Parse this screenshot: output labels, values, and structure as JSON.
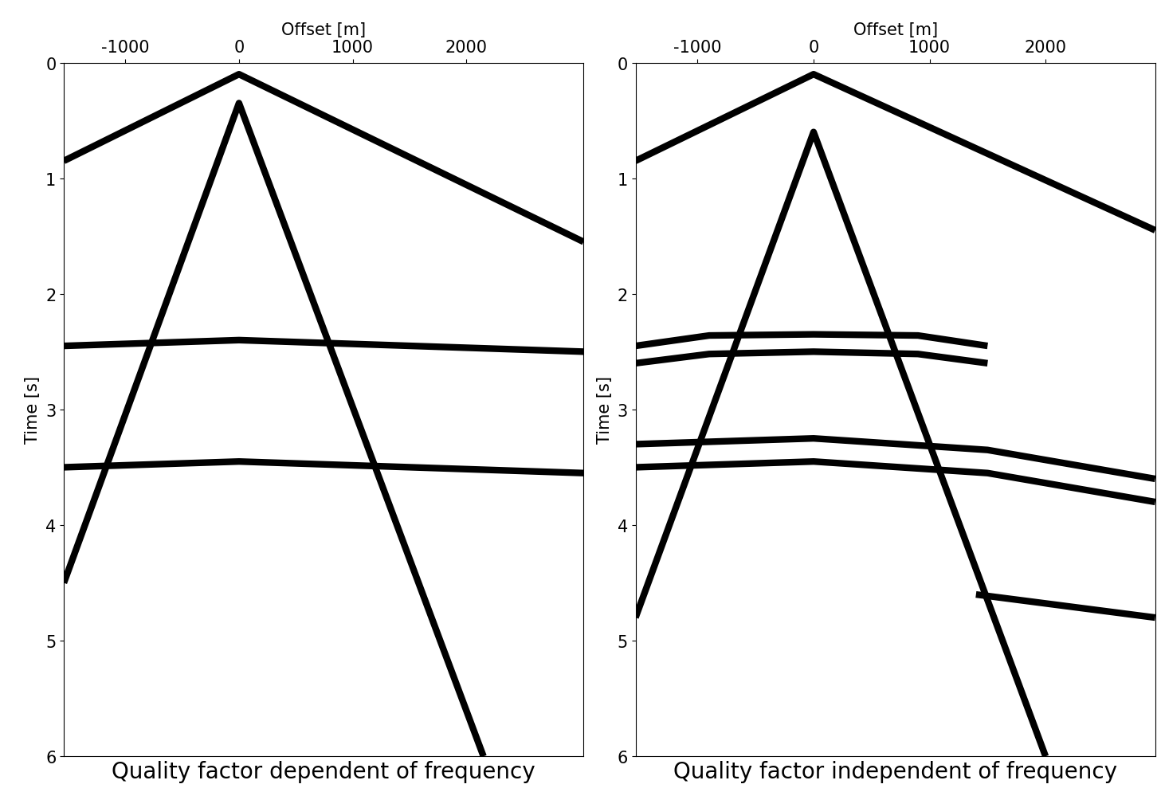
{
  "chart_data": [
    {
      "type": "line",
      "title": "Quality factor dependent of frequency",
      "x_label": "Offset [m]",
      "y_label": "Time [s]",
      "xlim": [
        -1540,
        3030
      ],
      "ylim": [
        6,
        0
      ],
      "xticks": [
        -1000,
        0,
        1000,
        2000
      ],
      "yticks": [
        0,
        1,
        2,
        3,
        4,
        5,
        6
      ],
      "grid": false,
      "color": "#000000",
      "series": [
        {
          "x": [
            -1540,
            0,
            3030
          ],
          "values": [
            0.85,
            0.1,
            1.55
          ]
        },
        {
          "x": [
            -1540,
            0,
            2150
          ],
          "values": [
            4.5,
            0.35,
            6.0
          ]
        },
        {
          "x": [
            -1540,
            0,
            3030
          ],
          "values": [
            2.45,
            2.4,
            2.5
          ]
        },
        {
          "x": [
            -1540,
            0,
            3030
          ],
          "values": [
            3.5,
            3.45,
            3.55
          ]
        }
      ]
    },
    {
      "type": "line",
      "title": "Quality factor independent of frequency",
      "x_label": "Offset [m]",
      "y_label": "Time [s]",
      "xlim": [
        -1535,
        2945
      ],
      "ylim": [
        6,
        0
      ],
      "xticks": [
        -1000,
        0,
        1000,
        2000
      ],
      "yticks": [
        0,
        1,
        2,
        3,
        4,
        5,
        6
      ],
      "grid": false,
      "color": "#000000",
      "series": [
        {
          "x": [
            -1535,
            0,
            2945
          ],
          "values": [
            0.85,
            0.1,
            1.45
          ]
        },
        {
          "x": [
            -1535,
            0,
            2000
          ],
          "values": [
            4.8,
            0.6,
            6.0
          ]
        },
        {
          "x": [
            -1535,
            -900,
            0,
            900,
            1500
          ],
          "values": [
            2.45,
            2.36,
            2.35,
            2.36,
            2.45
          ]
        },
        {
          "x": [
            -1535,
            -900,
            0,
            900,
            1500
          ],
          "values": [
            2.6,
            2.52,
            2.5,
            2.52,
            2.6
          ]
        },
        {
          "x": [
            -1535,
            0,
            1500,
            2945
          ],
          "values": [
            3.3,
            3.25,
            3.35,
            3.6
          ]
        },
        {
          "x": [
            -1535,
            0,
            1500,
            2945
          ],
          "values": [
            3.5,
            3.45,
            3.55,
            3.8
          ]
        },
        {
          "x": [
            1400,
            2945
          ],
          "values": [
            4.6,
            4.8
          ]
        }
      ]
    }
  ]
}
